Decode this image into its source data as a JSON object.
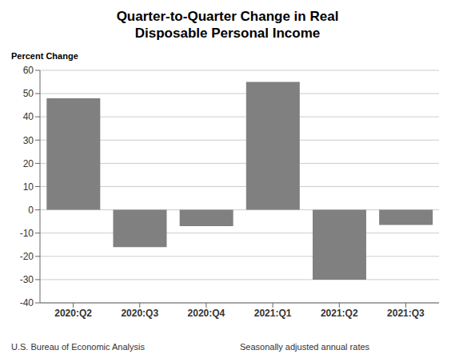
{
  "chart_data": {
    "type": "bar",
    "title": "Quarter-to-Quarter Change in Real\nDisposable Personal Income",
    "ylabel": "Percent Change",
    "categories": [
      "2020:Q2",
      "2020:Q3",
      "2020:Q4",
      "2021:Q1",
      "2021:Q2",
      "2021:Q3"
    ],
    "values": [
      48.0,
      -16.0,
      -7.0,
      55.0,
      -30.0,
      -6.5
    ],
    "color": "#808080",
    "ylim": [
      -40,
      60
    ],
    "yticks": [
      -40,
      -30,
      -20,
      -10,
      0,
      10,
      20,
      30,
      40,
      50,
      60
    ],
    "grid": true,
    "annotations": [
      "U.S. Bureau of Economic Analysis",
      "Seasonally adjusted annual rates"
    ]
  }
}
